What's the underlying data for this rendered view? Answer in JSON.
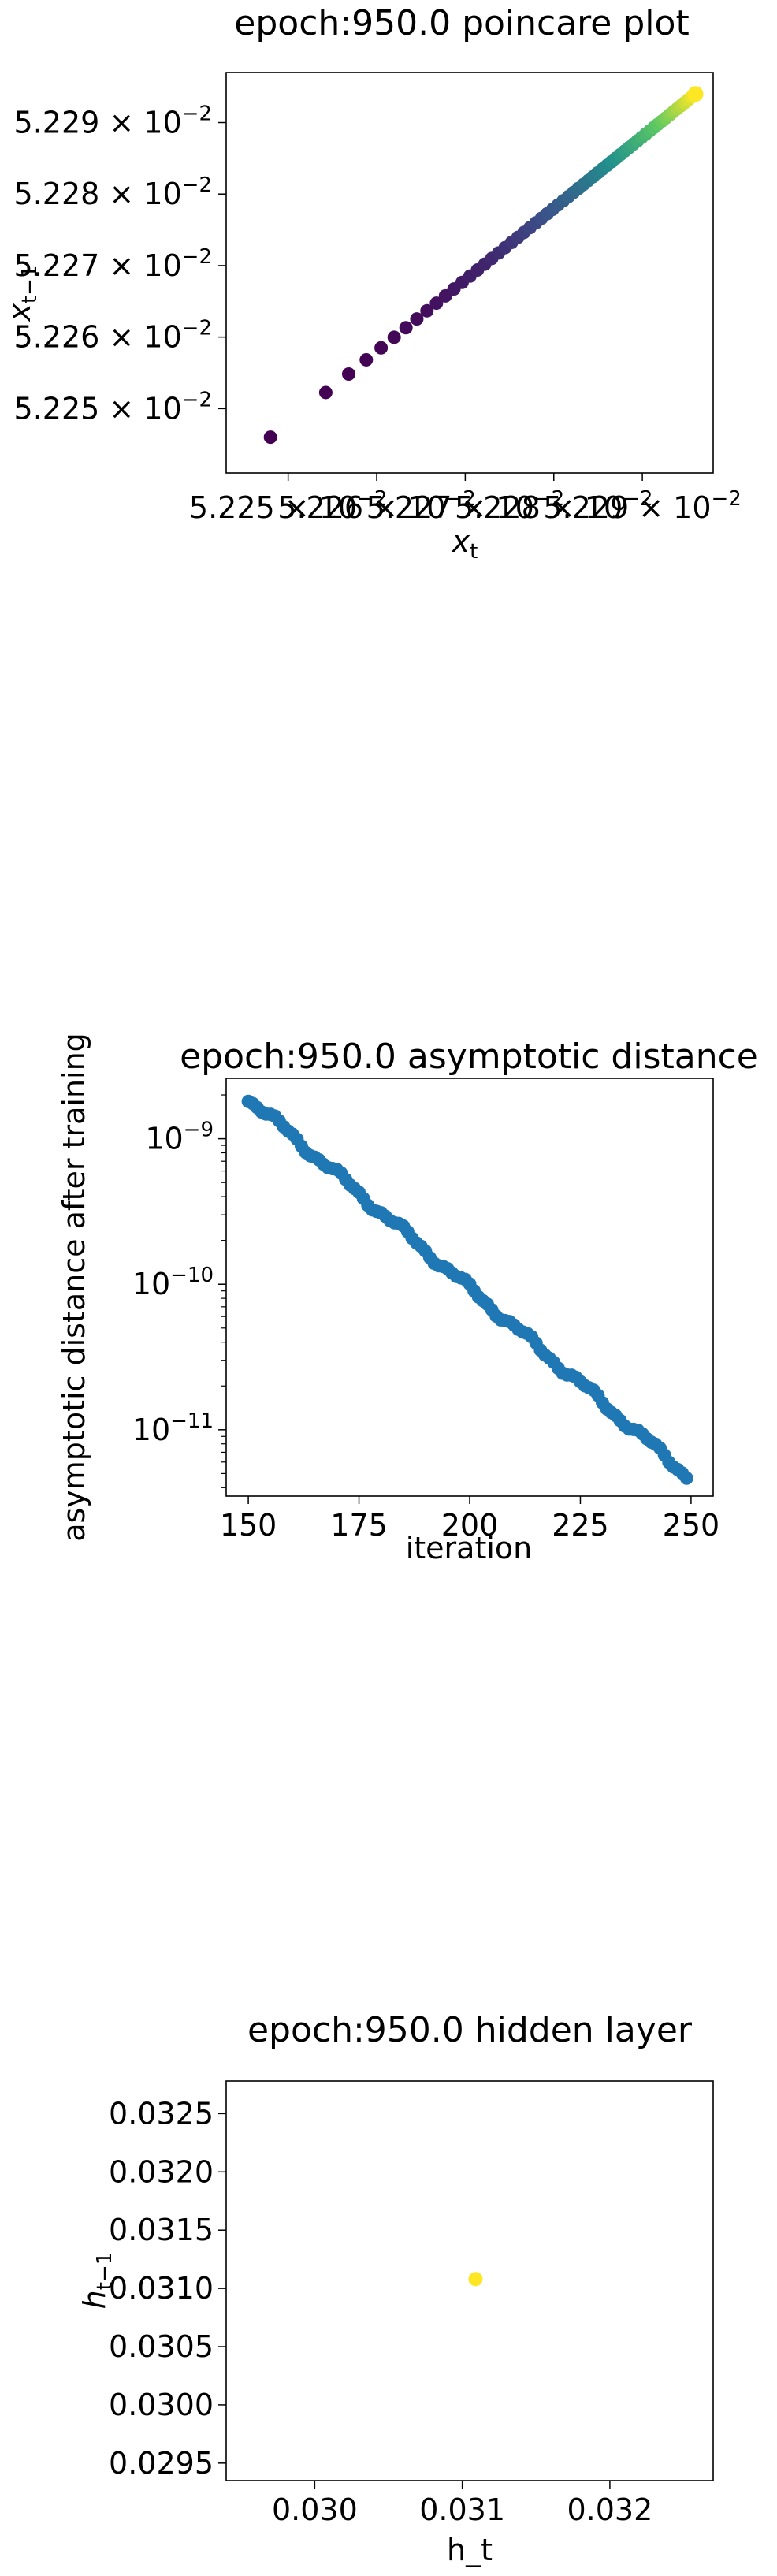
{
  "chart_data": [
    {
      "type": "scatter",
      "title": "epoch:950.0 poincare plot",
      "xlabel": "x_t",
      "ylabel": "x_{t-1}",
      "xlim": [
        0.052243,
        0.052298
      ],
      "ylim": [
        0.052241,
        0.052297
      ],
      "x_ticks": [
        {
          "value": 0.05225,
          "mantissa": "5.225",
          "exp": "−2"
        },
        {
          "value": 0.05226,
          "mantissa": "5.226",
          "exp": "−2"
        },
        {
          "value": 0.05227,
          "mantissa": "5.227",
          "exp": "−2"
        },
        {
          "value": 0.05228,
          "mantissa": "5.228",
          "exp": "−2"
        },
        {
          "value": 0.05229,
          "mantissa": "5.229",
          "exp": "−2"
        }
      ],
      "y_ticks": [
        {
          "value": 0.05225,
          "mantissa": "5.225",
          "exp": "−2"
        },
        {
          "value": 0.05226,
          "mantissa": "5.226",
          "exp": "−2"
        },
        {
          "value": 0.05227,
          "mantissa": "5.227",
          "exp": "−2"
        },
        {
          "value": 0.05228,
          "mantissa": "5.228",
          "exp": "−2"
        },
        {
          "value": 0.05229,
          "mantissa": "5.229",
          "exp": "−2"
        }
      ],
      "series": [
        {
          "x": [
            0.052248,
            0.052251,
            0.052254,
            0.052257,
            0.05226,
            0.052263,
            0.052266,
            0.052269,
            0.052272,
            0.052275,
            0.052278,
            0.052281,
            0.052284,
            0.052287,
            0.05229,
            0.052293,
            0.052296
          ],
          "y": [
            0.052246,
            0.052249,
            0.052252,
            0.052255,
            0.052258,
            0.052261,
            0.052264,
            0.052267,
            0.05227,
            0.052273,
            0.052276,
            0.052279,
            0.052282,
            0.052285,
            0.052288,
            0.052291,
            0.052294
          ],
          "color_map": "viridis"
        }
      ],
      "grid": false
    },
    {
      "type": "scatter",
      "title": "epoch:950.0 asymptotic distance",
      "xlabel": "iteration",
      "ylabel": "asymptotic distance after training",
      "y_scale": "log",
      "xlim": [
        145,
        255
      ],
      "ylim": [
        3.5e-12,
        2.6e-09
      ],
      "x_ticks": [
        150,
        175,
        200,
        225,
        250
      ],
      "y_ticks": [
        {
          "value": 1e-09,
          "mantissa": "10",
          "exp": "−9"
        },
        {
          "value": 1e-10,
          "mantissa": "10",
          "exp": "−10"
        },
        {
          "value": 1e-11,
          "mantissa": "10",
          "exp": "−11"
        }
      ],
      "series": [
        {
          "x_start": 150,
          "x_end": 249,
          "y_start": 1.9e-09,
          "y_end": 4.9e-12,
          "color": "#1f77b4"
        }
      ],
      "grid": false
    },
    {
      "type": "scatter",
      "title": "epoch:950.0 hidden layer",
      "xlabel": "h_t",
      "ylabel": "h_{t-1}",
      "xlim": [
        0.0294,
        0.0327
      ],
      "ylim": [
        0.02935,
        0.03278
      ],
      "x_ticks": [
        {
          "value": 0.03,
          "label": "0.030"
        },
        {
          "value": 0.031,
          "label": "0.031"
        },
        {
          "value": 0.032,
          "label": "0.032"
        }
      ],
      "y_ticks": [
        {
          "value": 0.0295,
          "label": "0.0295"
        },
        {
          "value": 0.03,
          "label": "0.0300"
        },
        {
          "value": 0.0305,
          "label": "0.0305"
        },
        {
          "value": 0.031,
          "label": "0.0310"
        },
        {
          "value": 0.0315,
          "label": "0.0315"
        },
        {
          "value": 0.032,
          "label": "0.0320"
        },
        {
          "value": 0.0325,
          "label": "0.0325"
        }
      ],
      "series": [
        {
          "x": [
            0.03109
          ],
          "y": [
            0.03108
          ],
          "color": "#fde725"
        }
      ],
      "grid": false
    }
  ]
}
